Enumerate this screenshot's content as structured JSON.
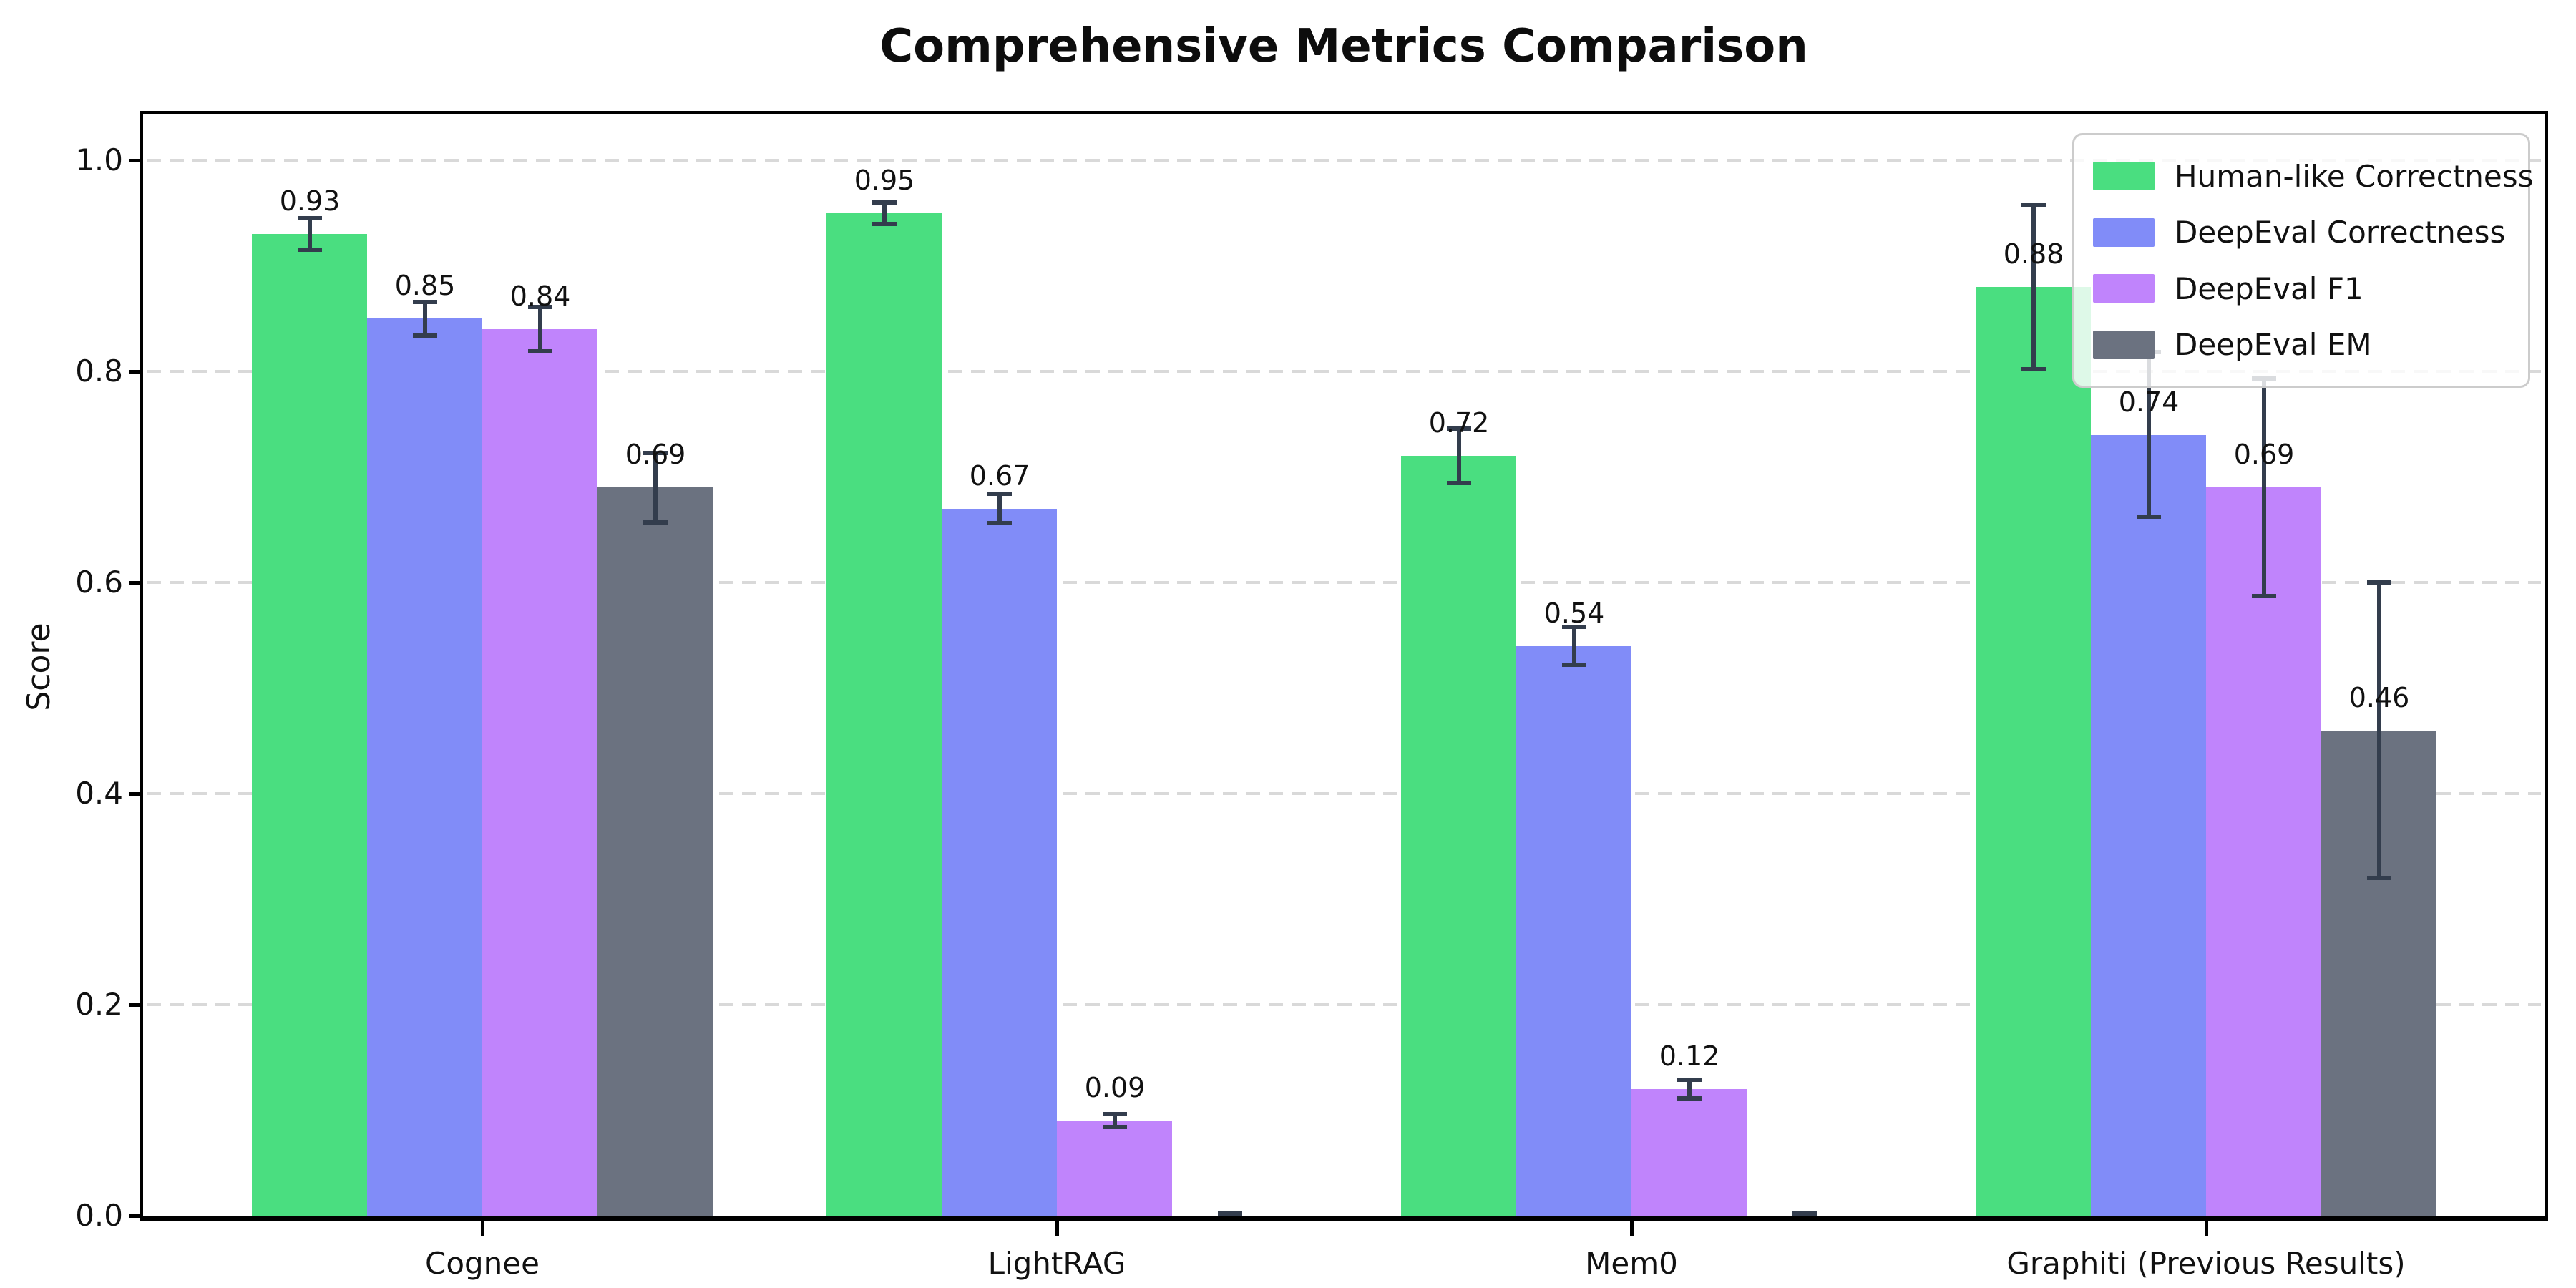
{
  "title": "Comprehensive Metrics Comparison",
  "chart_data": {
    "type": "bar",
    "title": "Comprehensive Metrics Comparison",
    "xlabel": "",
    "ylabel": "Score",
    "categories": [
      "Cognee",
      "LightRAG",
      "Mem0",
      "Graphiti (Previous Results)"
    ],
    "series": [
      {
        "name": "Human-like Correctness",
        "color": "#4ade80",
        "values": [
          0.93,
          0.95,
          0.72,
          0.88
        ],
        "errors": [
          0.015,
          0.01,
          0.026,
          0.078
        ],
        "labels": [
          "0.93",
          "0.95",
          "0.72",
          "0.88"
        ]
      },
      {
        "name": "DeepEval Correctness",
        "color": "#818cf8",
        "values": [
          0.85,
          0.67,
          0.54,
          0.74
        ],
        "errors": [
          0.016,
          0.014,
          0.018,
          0.078
        ],
        "labels": [
          "0.85",
          "0.67",
          "0.54",
          "0.74"
        ]
      },
      {
        "name": "DeepEval F1",
        "color": "#c084fc",
        "values": [
          0.84,
          0.09,
          0.12,
          0.69
        ],
        "errors": [
          0.021,
          0.006,
          0.009,
          0.103
        ],
        "labels": [
          "0.84",
          "0.09",
          "0.12",
          "0.69"
        ]
      },
      {
        "name": "DeepEval EM",
        "color": "#6b7280",
        "values": [
          0.69,
          0.0,
          0.0,
          0.46
        ],
        "errors": [
          0.033,
          0.003,
          0.003,
          0.14
        ],
        "labels": [
          "0.69",
          "",
          "",
          "0.46"
        ]
      }
    ],
    "yticks": [
      "0.0",
      "0.2",
      "0.4",
      "0.6",
      "0.8",
      "1.0"
    ],
    "ytick_values": [
      0.0,
      0.2,
      0.4,
      0.6,
      0.8,
      1.0
    ],
    "ylim": [
      0,
      1.05
    ],
    "grid": "horizontal-dashed",
    "legend": {
      "position": "upper-right",
      "entries": [
        "Human-like Correctness",
        "DeepEval Correctness",
        "DeepEval F1",
        "DeepEval EM"
      ]
    },
    "style": {
      "error_color": "#333d4d",
      "grid_color": "#d9d9d9",
      "spine_color": "#000000",
      "background": "#ffffff",
      "label_color": "#111111"
    }
  }
}
